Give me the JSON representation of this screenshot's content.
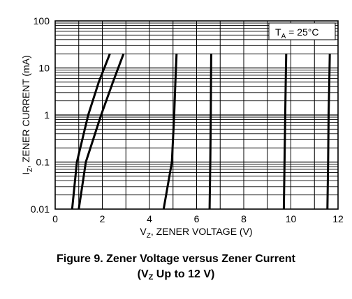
{
  "chart_data": {
    "type": "line",
    "xlabel": {
      "main": "V",
      "sub": "Z",
      "rest": ", ZENER VOLTAGE (V)"
    },
    "ylabel": {
      "main": "I",
      "sub": "Z",
      "rest": ", ZENER CURRENT (mA)"
    },
    "xlim": [
      0,
      12
    ],
    "ylim": [
      0.01,
      100
    ],
    "y_scale": "log",
    "x_ticks": [
      "0",
      "2",
      "4",
      "6",
      "8",
      "10",
      "12"
    ],
    "y_ticks": [
      "0.01",
      "0.1",
      "1",
      "10",
      "100"
    ],
    "grid": true,
    "annotation": {
      "main": "T",
      "sub": "A",
      "rest": " = 25°C"
    },
    "series": [
      {
        "points": [
          [
            0.72,
            0.01
          ],
          [
            0.92,
            0.1
          ],
          [
            1.4,
            1
          ],
          [
            1.85,
            5
          ],
          [
            2.32,
            20
          ]
        ]
      },
      {
        "points": [
          [
            1.0,
            0.01
          ],
          [
            1.3,
            0.1
          ],
          [
            1.95,
            1
          ],
          [
            2.45,
            5
          ],
          [
            2.9,
            20
          ]
        ]
      },
      {
        "points": [
          [
            4.6,
            0.01
          ],
          [
            4.95,
            0.1
          ],
          [
            5.05,
            1
          ],
          [
            5.1,
            5
          ],
          [
            5.15,
            20
          ]
        ]
      },
      {
        "points": [
          [
            6.55,
            0.01
          ],
          [
            6.58,
            0.1
          ],
          [
            6.6,
            1
          ],
          [
            6.61,
            5
          ],
          [
            6.62,
            20
          ]
        ]
      },
      {
        "points": [
          [
            9.7,
            0.01
          ],
          [
            9.73,
            0.1
          ],
          [
            9.76,
            1
          ],
          [
            9.78,
            5
          ],
          [
            9.8,
            20
          ]
        ]
      },
      {
        "points": [
          [
            11.55,
            0.01
          ],
          [
            11.58,
            0.1
          ],
          [
            11.6,
            1
          ],
          [
            11.63,
            5
          ],
          [
            11.65,
            20
          ]
        ]
      }
    ]
  },
  "caption": {
    "line1": "Figure 9. Zener Voltage versus Zener Current",
    "line2_open": "(V",
    "line2_sub": "Z",
    "line2_rest": " Up to 12 V)"
  }
}
